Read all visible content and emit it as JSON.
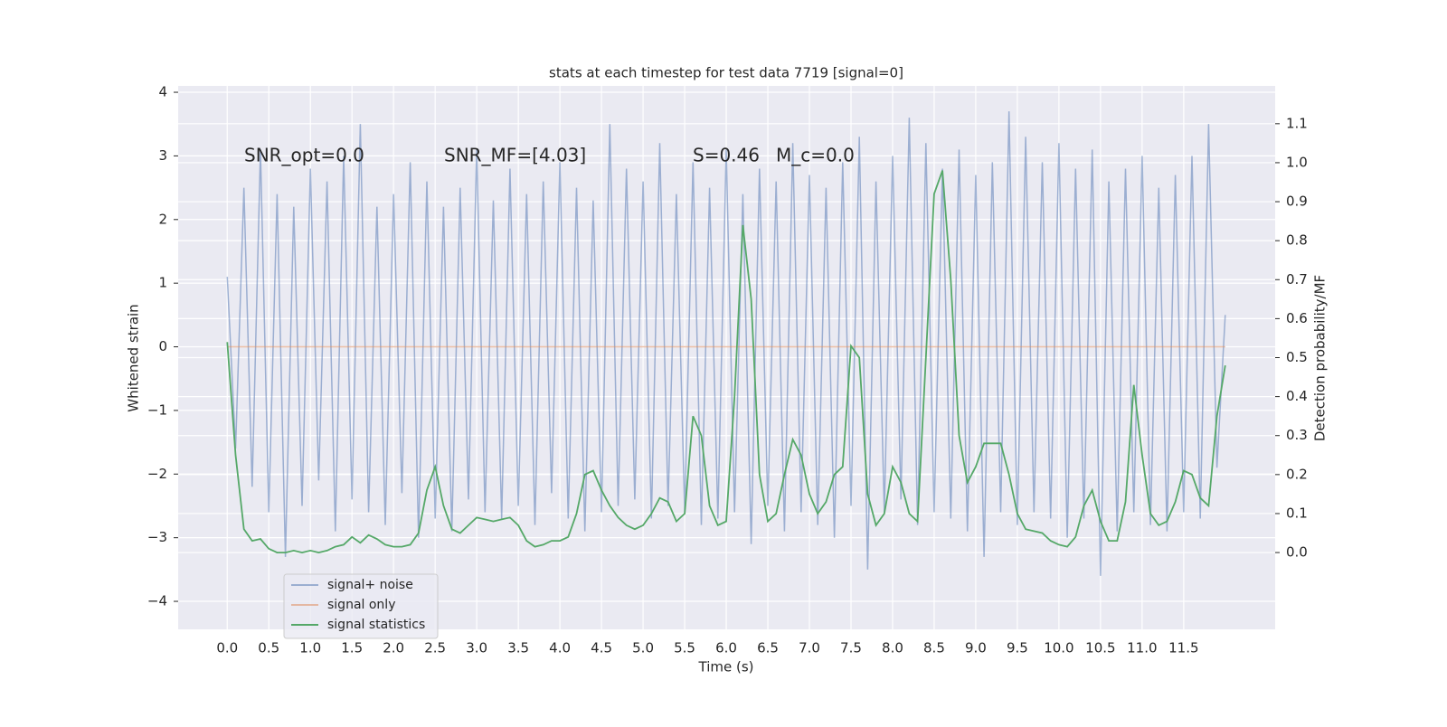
{
  "chart_data": {
    "type": "line",
    "title": "stats at each timestep for test data 7719 [signal=0]",
    "xlabel": "Time (s)",
    "ylabel": "Whitened strain",
    "y2label": "Detection probability/MF",
    "annotations": [
      "SNR_opt=0.0",
      "SNR_MF=[4.03]",
      "S=0.46",
      "M_c=0.0"
    ],
    "x": [
      0,
      0.1,
      0.2,
      0.3,
      0.4,
      0.5,
      0.6,
      0.7,
      0.8,
      0.9,
      1,
      1.1,
      1.2,
      1.3,
      1.4,
      1.5,
      1.6,
      1.7,
      1.8,
      1.9,
      2,
      2.1,
      2.2,
      2.3,
      2.4,
      2.5,
      2.6,
      2.7,
      2.8,
      2.9,
      3,
      3.1,
      3.2,
      3.3,
      3.4,
      3.5,
      3.6,
      3.7,
      3.8,
      3.9,
      4,
      4.1,
      4.2,
      4.3,
      4.4,
      4.5,
      4.6,
      4.7,
      4.8,
      4.9,
      5,
      5.1,
      5.2,
      5.3,
      5.4,
      5.5,
      5.6,
      5.7,
      5.8,
      5.9,
      6,
      6.1,
      6.2,
      6.3,
      6.4,
      6.5,
      6.6,
      6.7,
      6.8,
      6.9,
      7,
      7.1,
      7.2,
      7.3,
      7.4,
      7.5,
      7.6,
      7.7,
      7.8,
      7.9,
      8,
      8.1,
      8.2,
      8.3,
      8.4,
      8.5,
      8.6,
      8.7,
      8.8,
      8.9,
      9,
      9.1,
      9.2,
      9.3,
      9.4,
      9.5,
      9.6,
      9.7,
      9.8,
      9.9,
      10,
      10.1,
      10.2,
      10.3,
      10.4,
      10.5,
      10.6,
      10.7,
      10.8,
      10.9,
      11,
      11.1,
      11.2,
      11.3,
      11.4,
      11.5,
      11.6,
      11.7,
      11.8,
      11.9,
      12
    ],
    "series": [
      {
        "name": "signal+ noise",
        "color": "#4c72b0",
        "opacity": 0.5,
        "values": [
          1.1,
          -1.6,
          2.5,
          -2.2,
          3.1,
          -2.6,
          2.4,
          -3.3,
          2.2,
          -2.5,
          2.8,
          -2.1,
          2.6,
          -2.9,
          3.0,
          -2.4,
          3.5,
          -2.6,
          2.2,
          -2.8,
          2.4,
          -2.3,
          2.9,
          -3.0,
          2.6,
          -2.7,
          2.2,
          -2.9,
          2.5,
          -2.4,
          3.1,
          -2.6,
          2.3,
          -2.7,
          2.8,
          -2.5,
          2.4,
          -2.8,
          2.6,
          -2.3,
          2.9,
          -2.7,
          2.5,
          -2.9,
          2.3,
          -2.6,
          3.5,
          -2.5,
          2.8,
          -2.4,
          2.6,
          -2.7,
          3.2,
          -2.5,
          2.4,
          -2.6,
          2.9,
          -2.8,
          2.5,
          -2.7,
          3.1,
          -2.6,
          2.4,
          -3.1,
          2.8,
          -2.5,
          2.6,
          -2.9,
          3.2,
          -2.6,
          2.7,
          -2.8,
          2.5,
          -3.0,
          2.9,
          -2.5,
          3.3,
          -3.5,
          2.6,
          -2.6,
          3.0,
          -2.4,
          3.6,
          -2.8,
          3.2,
          -2.6,
          2.8,
          -2.7,
          3.1,
          -2.9,
          2.7,
          -3.3,
          2.9,
          -2.6,
          3.7,
          -2.8,
          3.3,
          -2.6,
          2.9,
          -2.7,
          3.2,
          -3.0,
          2.8,
          -2.7,
          3.1,
          -3.6,
          2.6,
          -2.9,
          2.8,
          -2.6,
          3.0,
          -2.8,
          2.5,
          -2.9,
          2.7,
          -2.6,
          3.0,
          -2.7,
          3.5,
          -1.9,
          0.5
        ]
      },
      {
        "name": "signal only",
        "color": "#dd8452",
        "opacity": 0.5,
        "values": [
          0,
          0,
          0,
          0,
          0,
          0,
          0,
          0,
          0,
          0,
          0,
          0,
          0,
          0,
          0,
          0,
          0,
          0,
          0,
          0,
          0,
          0,
          0,
          0,
          0,
          0,
          0,
          0,
          0,
          0,
          0,
          0,
          0,
          0,
          0,
          0,
          0,
          0,
          0,
          0,
          0,
          0,
          0,
          0,
          0,
          0,
          0,
          0,
          0,
          0,
          0,
          0,
          0,
          0,
          0,
          0,
          0,
          0,
          0,
          0,
          0,
          0,
          0,
          0,
          0,
          0,
          0,
          0,
          0,
          0,
          0,
          0,
          0,
          0,
          0,
          0,
          0,
          0,
          0,
          0,
          0,
          0,
          0,
          0,
          0,
          0,
          0,
          0,
          0,
          0,
          0,
          0,
          0,
          0,
          0,
          0,
          0,
          0,
          0,
          0,
          0,
          0,
          0,
          0,
          0,
          0,
          0,
          0,
          0,
          0,
          0,
          0,
          0,
          0,
          0,
          0,
          0,
          0,
          0,
          0,
          0
        ]
      },
      {
        "name": "signal statistics",
        "color": "#55a868",
        "opacity": 1,
        "axis": "y2",
        "values": [
          0.54,
          0.25,
          0.06,
          0.03,
          0.035,
          0.01,
          0,
          0,
          0.005,
          0,
          0.005,
          0,
          0.005,
          0.015,
          0.02,
          0.04,
          0.025,
          0.045,
          0.035,
          0.02,
          0.015,
          0.015,
          0.02,
          0.05,
          0.16,
          0.22,
          0.12,
          0.06,
          0.05,
          0.07,
          0.09,
          0.085,
          0.08,
          0.085,
          0.09,
          0.07,
          0.03,
          0.015,
          0.02,
          0.03,
          0.03,
          0.04,
          0.1,
          0.2,
          0.21,
          0.16,
          0.12,
          0.09,
          0.07,
          0.06,
          0.07,
          0.1,
          0.14,
          0.13,
          0.08,
          0.1,
          0.35,
          0.3,
          0.12,
          0.07,
          0.08,
          0.4,
          0.84,
          0.65,
          0.2,
          0.08,
          0.1,
          0.2,
          0.29,
          0.25,
          0.15,
          0.1,
          0.13,
          0.2,
          0.22,
          0.53,
          0.5,
          0.15,
          0.07,
          0.1,
          0.22,
          0.18,
          0.1,
          0.08,
          0.5,
          0.92,
          0.98,
          0.7,
          0.3,
          0.18,
          0.22,
          0.28,
          0.28,
          0.28,
          0.2,
          0.1,
          0.06,
          0.055,
          0.05,
          0.03,
          0.02,
          0.015,
          0.04,
          0.12,
          0.16,
          0.08,
          0.03,
          0.03,
          0.13,
          0.43,
          0.25,
          0.1,
          0.07,
          0.08,
          0.13,
          0.21,
          0.2,
          0.14,
          0.12,
          0.35,
          0.48
        ]
      }
    ],
    "xlim": [
      -0.59,
      12.6
    ],
    "ylim": [
      -4.44,
      4.1
    ],
    "y2lim": [
      -0.197,
      1.197
    ],
    "xticks": [
      {
        "value": 0,
        "label": "0.0"
      },
      0.5,
      {
        "value": 1,
        "label": "1.0"
      },
      1.5,
      {
        "value": 2,
        "label": "2.0"
      },
      2.5,
      {
        "value": 3,
        "label": "3.0"
      },
      3.5,
      {
        "value": 4,
        "label": "4.0"
      },
      4.5,
      {
        "value": 5,
        "label": "5.0"
      },
      5.5,
      {
        "value": 6,
        "label": "6.0"
      },
      6.5,
      {
        "value": 7,
        "label": "7.0"
      },
      7.5,
      {
        "value": 8,
        "label": "8.0"
      },
      8.5,
      {
        "value": 9,
        "label": "9.0"
      },
      9.5,
      {
        "value": 10,
        "label": "10.0"
      },
      10.5,
      {
        "value": 11,
        "label": "11.0"
      },
      11.5
    ],
    "yticks": [
      {
        "value": -4,
        "label": "−4"
      },
      {
        "value": -3,
        "label": "−3"
      },
      {
        "value": -2,
        "label": "−2"
      },
      {
        "value": -1,
        "label": "−1"
      },
      0,
      1,
      2,
      3,
      4
    ],
    "y2ticks": [
      {
        "value": 0,
        "label": "0.0"
      },
      0.1,
      0.2,
      0.3,
      0.4,
      0.5,
      0.6,
      0.7,
      0.8,
      0.9,
      {
        "value": 1,
        "label": "1.0"
      },
      1.1
    ],
    "grid": true,
    "legend": "lower left"
  }
}
